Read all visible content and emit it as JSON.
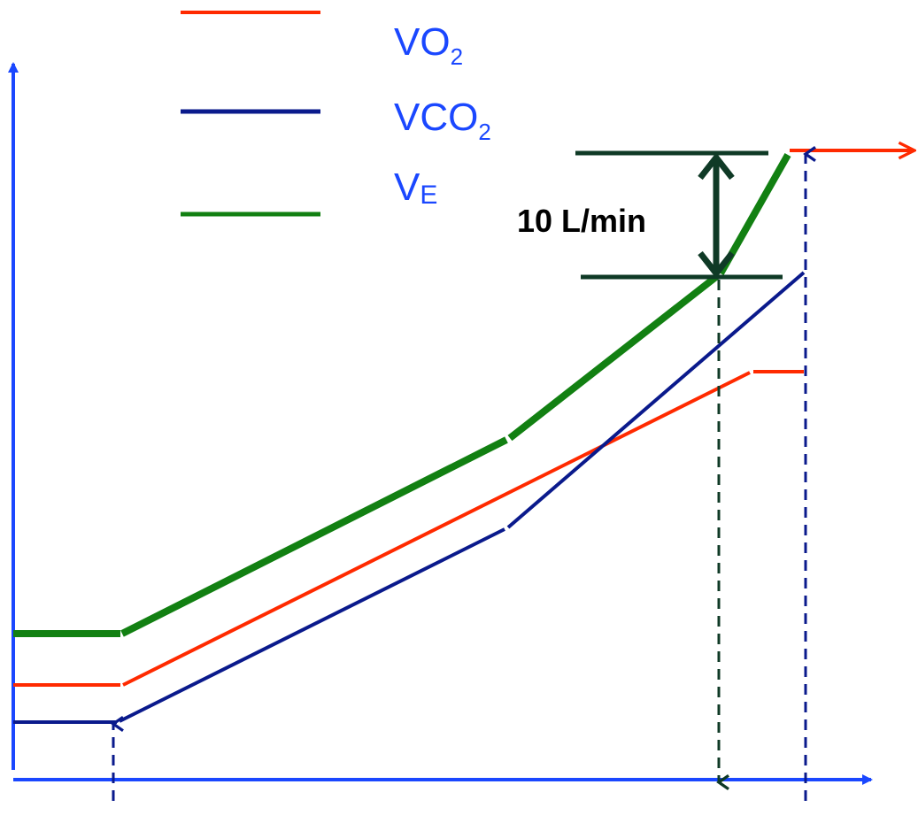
{
  "colors": {
    "axis": "#1a47ff",
    "vo2": "#ff2a00",
    "vco2": "#0a1a8c",
    "ve": "#128012",
    "dimension": "#0f3a26",
    "marker_blue": "#0a1a8c",
    "marker_green": "#0f3a26"
  },
  "legend": {
    "items": [
      {
        "key": "vo2",
        "text": "VO",
        "subscript": "2"
      },
      {
        "key": "vco2",
        "text": "VCO",
        "subscript": "2"
      },
      {
        "key": "ve",
        "text": "V",
        "subscript": "E"
      }
    ]
  },
  "dimension": {
    "label": "10 L/min"
  }
}
